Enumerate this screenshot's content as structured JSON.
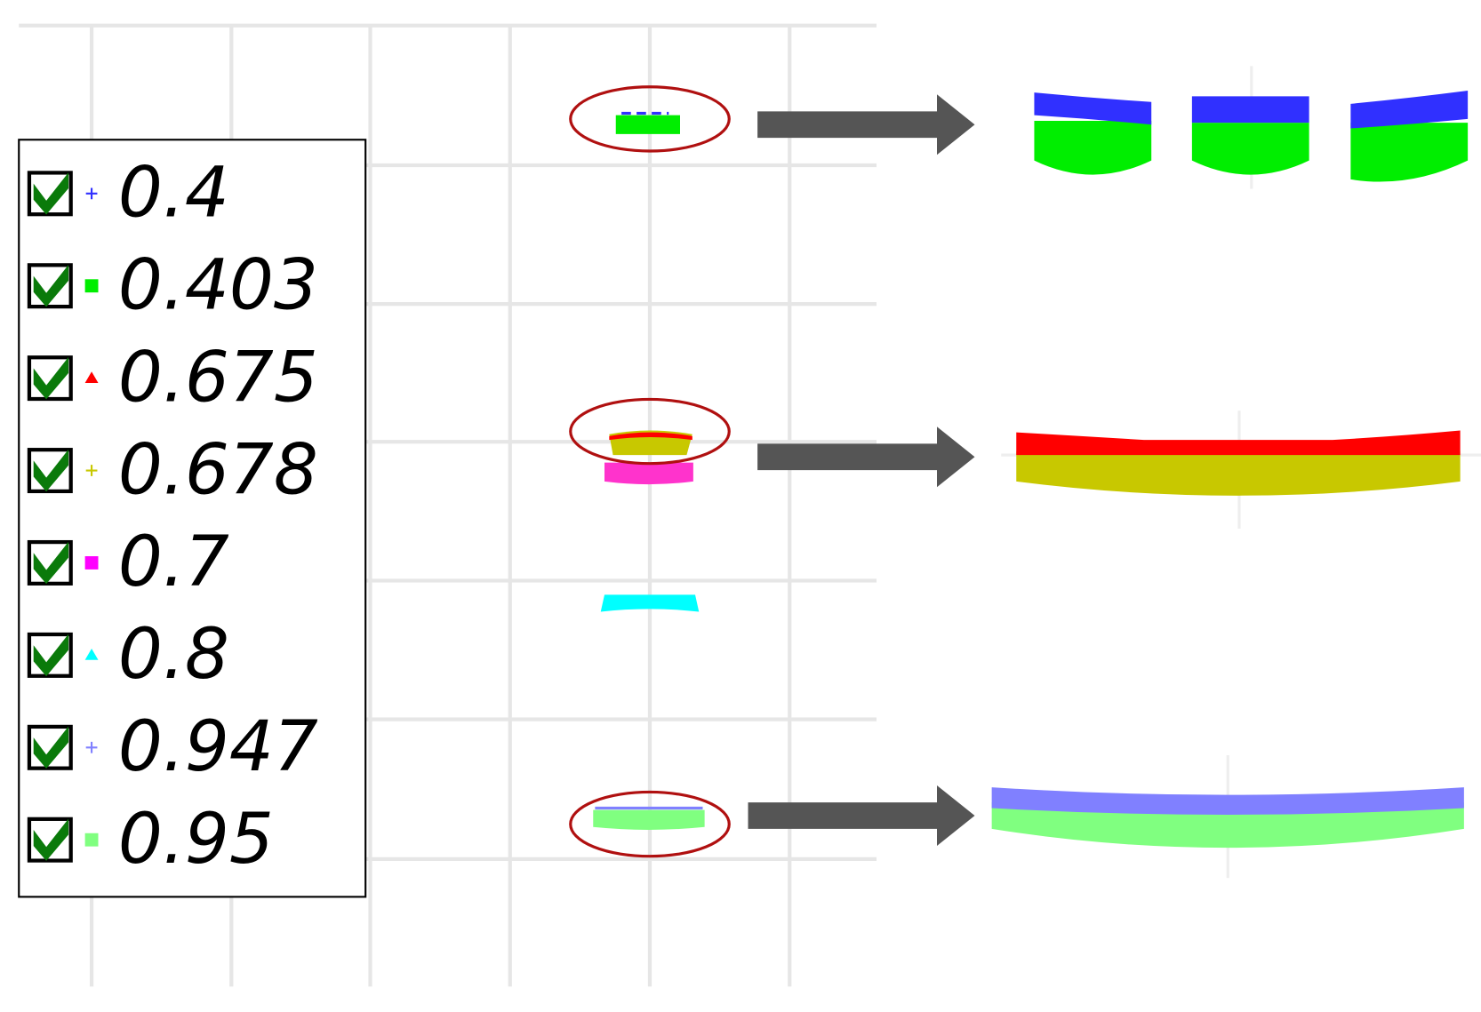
{
  "legend": {
    "items": [
      {
        "label": "0.4",
        "color": "#3030ff",
        "marker": "plus"
      },
      {
        "label": "0.403",
        "color": "#00ee00",
        "marker": "square"
      },
      {
        "label": "0.675",
        "color": "#ff0000",
        "marker": "triangle"
      },
      {
        "label": "0.678",
        "color": "#c8c800",
        "marker": "plus"
      },
      {
        "label": "0.7",
        "color": "#ff00ff",
        "marker": "square"
      },
      {
        "label": "0.8",
        "color": "#00ffff",
        "marker": "triangle"
      },
      {
        "label": "0.947",
        "color": "#8080ff",
        "marker": "plus"
      },
      {
        "label": "0.95",
        "color": "#80ff80",
        "marker": "square"
      }
    ]
  }
}
